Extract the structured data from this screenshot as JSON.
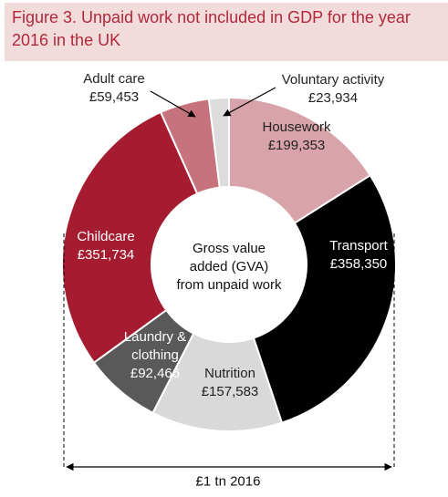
{
  "chart_data": {
    "type": "donut",
    "title": "Figure 3.  Unpaid work not included in GDP for the year 2016 in the UK",
    "center_label": "Gross value added (GVA) from unpaid work",
    "total_label": "£1 tn 2016",
    "categories": [
      "Housework",
      "Transport",
      "Nutrition",
      "Laundry & clothing",
      "Childcare",
      "Adult care",
      "Voluntary activity"
    ],
    "values": [
      199353,
      358350,
      157583,
      92466,
      351734,
      59453,
      23934
    ],
    "value_labels": [
      "£199,353",
      "£358,350",
      "£157,583",
      "£92,466",
      "£351,734",
      "£59,453",
      "£23,934"
    ],
    "colors": [
      "#d9a3ab",
      "#000000",
      "#d9d9d9",
      "#595959",
      "#a51c30",
      "#c7737e",
      "#dcdcdc"
    ]
  }
}
